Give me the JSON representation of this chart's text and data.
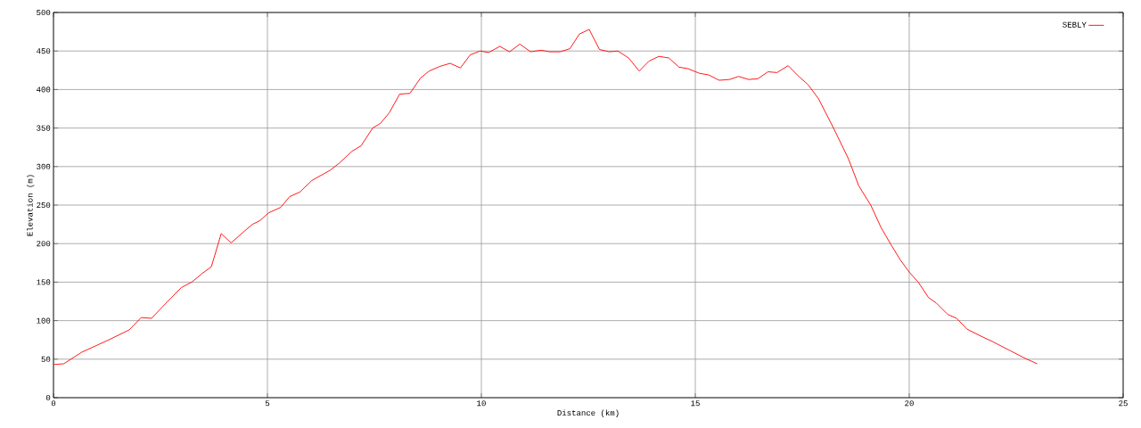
{
  "chart_data": {
    "type": "line",
    "xlabel": "Distance (km)",
    "ylabel": "Elevation (m)",
    "xlim": [
      0,
      25
    ],
    "ylim": [
      0,
      500
    ],
    "xticks": [
      0,
      5,
      10,
      15,
      20,
      25
    ],
    "yticks": [
      0,
      50,
      100,
      150,
      200,
      250,
      300,
      350,
      400,
      450,
      500
    ],
    "grid": true,
    "legend": "top right",
    "marker": "none",
    "line_style": "solid",
    "x": [
      0,
      0.24,
      0.66,
      1.29,
      1.77,
      2.05,
      2.29,
      2.67,
      2.99,
      3.23,
      3.47,
      3.69,
      3.92,
      4.15,
      4.48,
      4.65,
      4.83,
      5.03,
      5.31,
      5.52,
      5.76,
      6.04,
      6.46,
      6.67,
      6.98,
      7.19,
      7.46,
      7.64,
      7.85,
      8.09,
      8.33,
      8.58,
      8.78,
      9.03,
      9.27,
      9.51,
      9.74,
      9.97,
      10.17,
      10.43,
      10.66,
      10.9,
      11.15,
      11.39,
      11.6,
      11.84,
      12.07,
      12.29,
      12.52,
      12.76,
      12.99,
      13.19,
      13.44,
      13.69,
      13.92,
      14.15,
      14.38,
      14.62,
      14.83,
      15.1,
      15.31,
      15.56,
      15.8,
      16.01,
      16.25,
      16.46,
      16.7,
      16.91,
      17.17,
      17.4,
      17.64,
      17.88,
      18.23,
      18.58,
      18.82,
      19.1,
      19.34,
      19.58,
      19.79,
      20,
      20.21,
      20.45,
      20.63,
      20.9,
      21.11,
      21.35,
      21.67,
      21.94,
      22.36,
      22.71,
      22.99
    ],
    "series": [
      {
        "name": "SEBLY",
        "color": "#ff0000",
        "values": [
          43,
          44,
          59,
          75,
          88,
          104,
          103,
          125,
          143,
          150,
          161,
          170,
          213,
          201,
          217,
          225,
          230,
          240,
          247,
          261,
          267,
          282,
          295,
          304,
          320,
          327,
          350,
          356,
          370,
          394,
          395,
          415,
          424,
          430,
          434,
          428,
          445,
          450,
          448,
          456,
          449,
          459,
          449,
          451,
          449,
          449,
          453,
          472,
          478,
          452,
          449,
          450,
          441,
          424,
          437,
          443,
          441,
          429,
          427,
          421,
          419,
          412,
          413,
          417,
          413,
          414,
          423,
          422,
          431,
          418,
          406,
          388,
          350,
          310,
          275,
          250,
          221,
          198,
          179,
          163,
          150,
          130,
          123,
          108,
          103,
          89,
          80,
          73,
          61,
          51,
          44
        ]
      }
    ]
  }
}
